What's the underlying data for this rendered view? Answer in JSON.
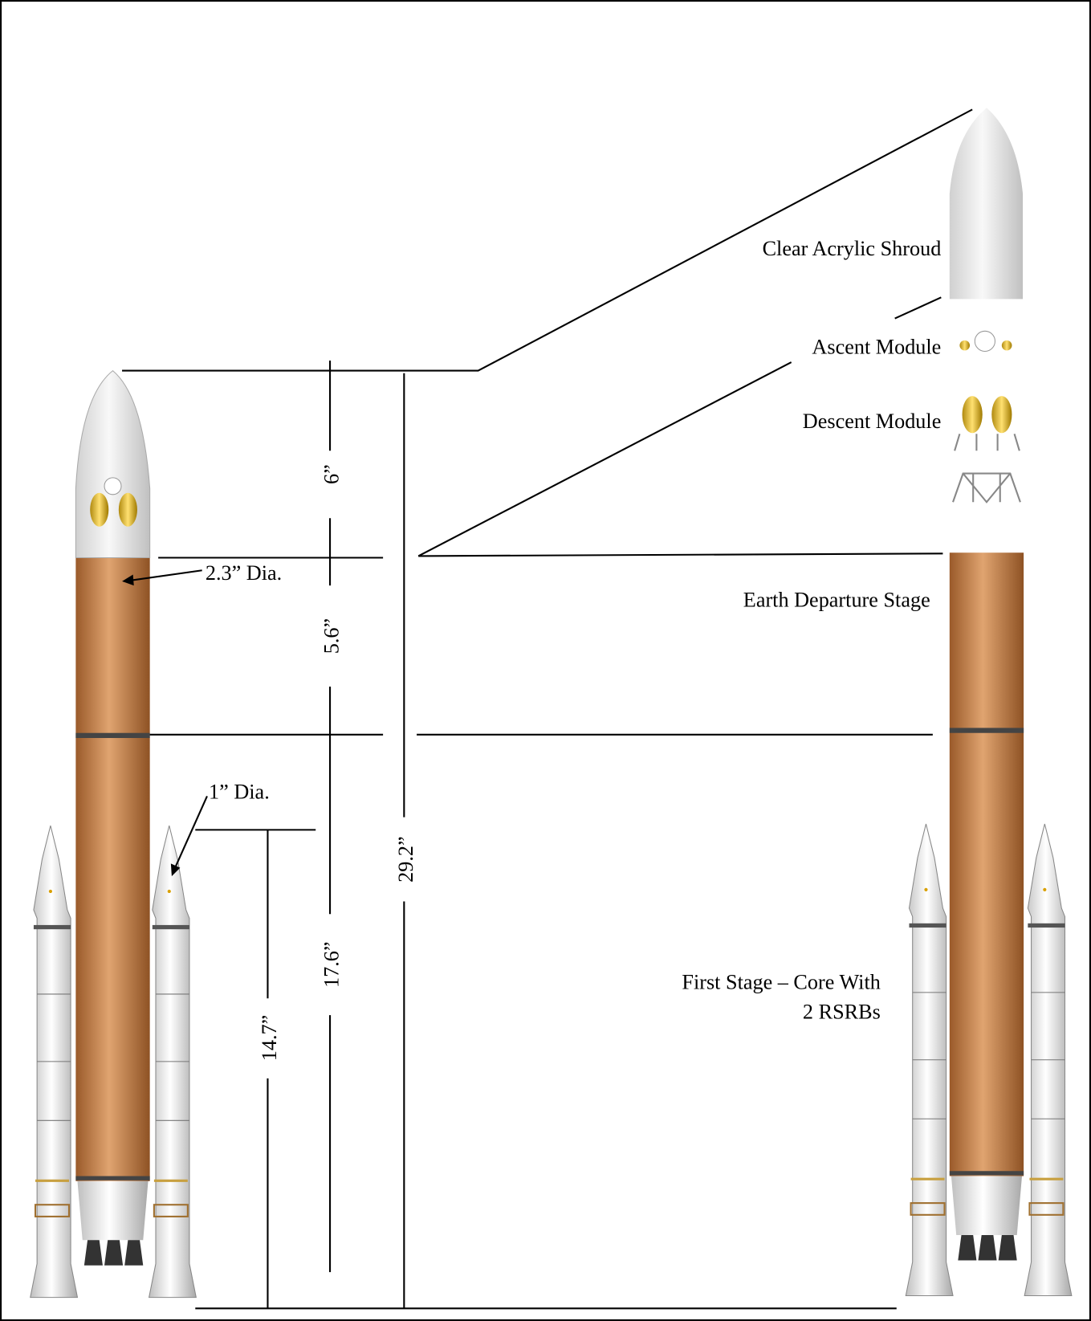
{
  "labels": {
    "shroud": "Clear Acrylic Shroud",
    "ascent": "Ascent Module",
    "descent": "Descent Module",
    "eds": "Earth Departure Stage",
    "first_stage": [
      "First Stage – Core With",
      "2 RSRBs"
    ],
    "core_dia": "2.3” Dia.",
    "booster_dia": "1” Dia."
  },
  "dimensions": {
    "shroud_height": "6”",
    "eds_height": "5.6”",
    "first_stage_height": "17.6”",
    "total_height": "29.2”",
    "booster_height": "14.7”"
  }
}
